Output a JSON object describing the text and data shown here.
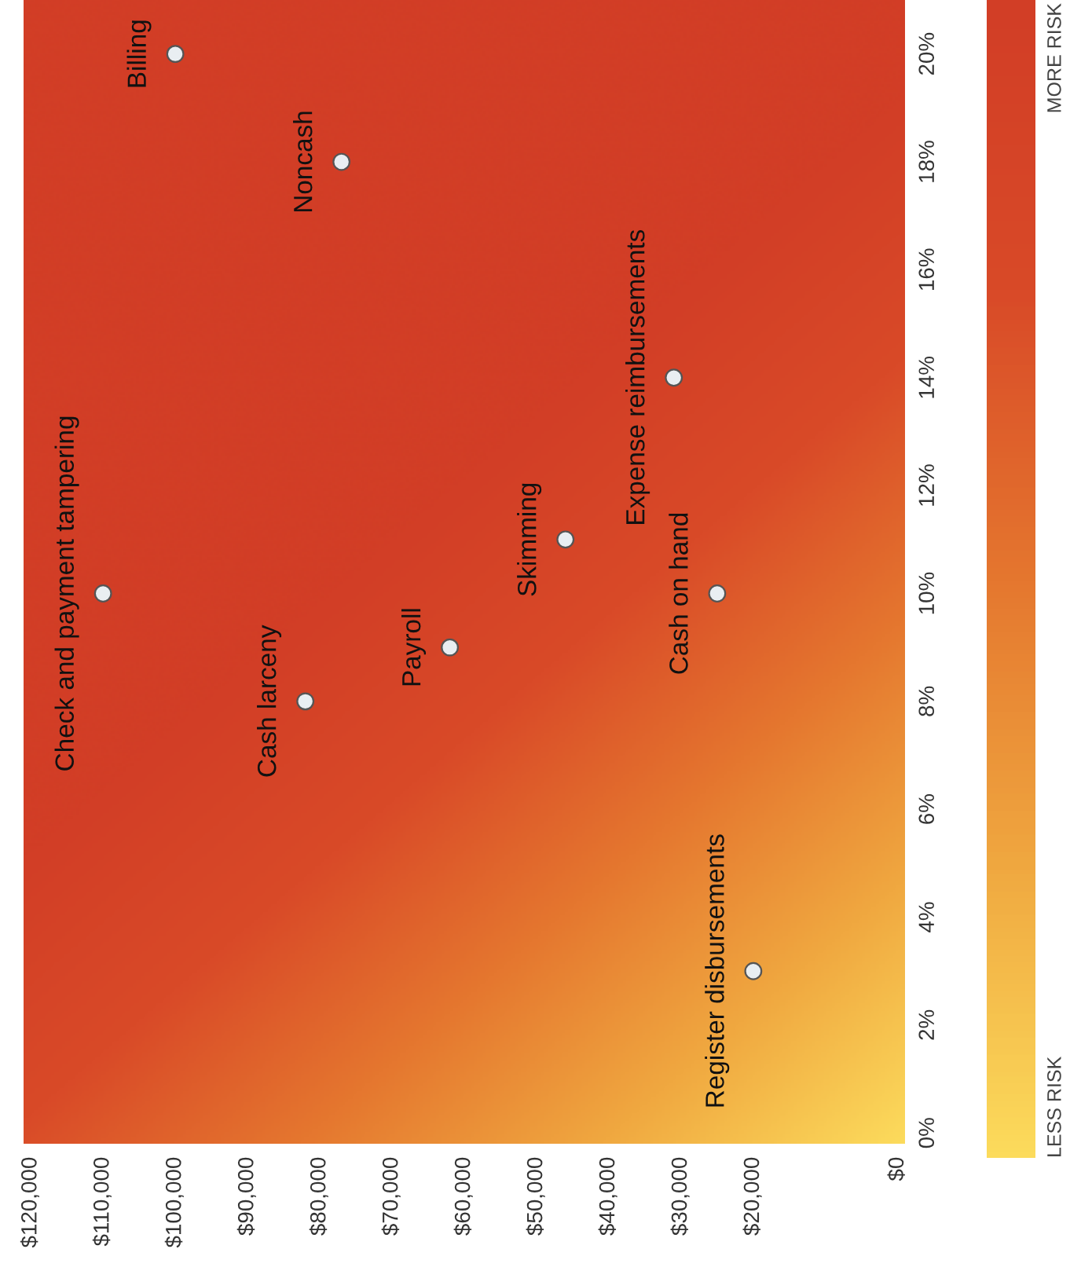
{
  "chart_data": {
    "type": "scatter",
    "x": [
      100000,
      77000,
      110000,
      82000,
      62000,
      46000,
      31000,
      25000,
      20000
    ],
    "series": [
      {
        "color": "#e9eef2",
        "values": [
          20,
          18,
          10,
          8,
          9,
          11,
          14,
          10,
          3
        ]
      }
    ],
    "marker": "circle",
    "xlim": [
      121000,
      -1000
    ],
    "xticks": [
      {
        "value": 120000,
        "label": "$120,000"
      },
      {
        "value": 110000,
        "label": "$110,000"
      },
      {
        "value": 100000,
        "label": "$100,000"
      },
      {
        "value": 90000,
        "label": "$90,000"
      },
      {
        "value": 80000,
        "label": "$80,000"
      },
      {
        "value": 70000,
        "label": "$70,000"
      },
      {
        "value": 60000,
        "label": "$60,000"
      },
      {
        "value": 50000,
        "label": "$50,000"
      },
      {
        "value": 40000,
        "label": "$40,000"
      },
      {
        "value": 30000,
        "label": "$30,000"
      },
      {
        "value": 20000,
        "label": "$20,000"
      },
      {
        "value": 0,
        "label": "$0"
      }
    ],
    "ylim": [
      -0.2,
      21
    ],
    "yticks": [
      {
        "value": 0,
        "label": "0%"
      },
      {
        "value": 2,
        "label": "2%"
      },
      {
        "value": 4,
        "label": "4%"
      },
      {
        "value": 6,
        "label": "6%"
      },
      {
        "value": 8,
        "label": "8%"
      },
      {
        "value": 10,
        "label": "10%"
      },
      {
        "value": 12,
        "label": "12%"
      },
      {
        "value": 14,
        "label": "14%"
      },
      {
        "value": 16,
        "label": "16%"
      },
      {
        "value": 18,
        "label": "18%"
      },
      {
        "value": 20,
        "label": "20%"
      }
    ],
    "grid": false,
    "annotations": [
      {
        "text": "Billing",
        "x": 100000,
        "y": 20
      },
      {
        "text": "Noncash",
        "x": 77000,
        "y": 18
      },
      {
        "text": "Check and payment tampering",
        "x": 110000,
        "y": 10
      },
      {
        "text": "Cash larceny",
        "x": 82000,
        "y": 8
      },
      {
        "text": "Payroll",
        "x": 62000,
        "y": 9
      },
      {
        "text": "Skimming",
        "x": 46000,
        "y": 11
      },
      {
        "text": "Expense reimbursements",
        "x": 31000,
        "y": 14
      },
      {
        "text": "Cash on hand",
        "x": 25000,
        "y": 10
      },
      {
        "text": "Register disbursements",
        "x": 20000,
        "y": 3
      },
      "LESS RISK",
      "MORE RISK"
    ]
  }
}
